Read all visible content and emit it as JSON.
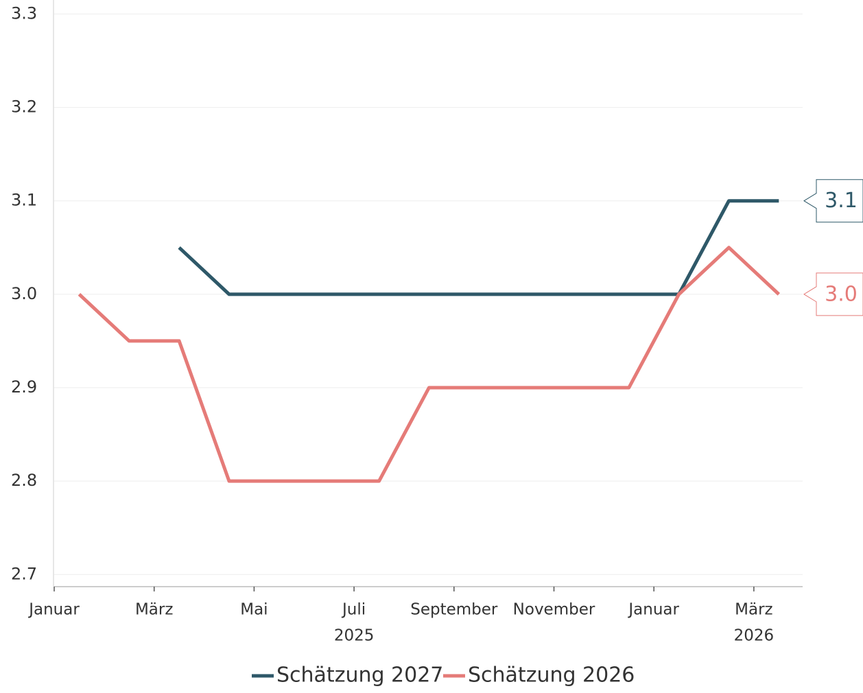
{
  "chart_data": {
    "type": "line",
    "x": [
      "2025-01",
      "2025-02",
      "2025-03",
      "2025-04",
      "2025-05",
      "2025-06",
      "2025-07",
      "2025-08",
      "2025-09",
      "2025-10",
      "2025-11",
      "2025-12",
      "2026-01",
      "2026-02",
      "2026-03"
    ],
    "series": [
      {
        "name": "Schätzung 2027",
        "color": "#2e5868",
        "values": [
          null,
          null,
          3.05,
          3.0,
          3.0,
          3.0,
          3.0,
          3.0,
          3.0,
          3.0,
          3.0,
          3.0,
          3.0,
          3.1,
          3.1
        ],
        "end_label": "3.1"
      },
      {
        "name": "Schätzung 2026",
        "color": "#e57b78",
        "values": [
          3.0,
          2.95,
          2.95,
          2.8,
          2.8,
          2.8,
          2.8,
          2.9,
          2.9,
          2.9,
          2.9,
          2.9,
          3.0,
          3.05,
          3.0
        ],
        "end_label": "3.0"
      }
    ],
    "ylim": [
      2.687,
      3.315
    ],
    "yticks": [
      2.7,
      2.8,
      2.9,
      {
        "value": 3,
        "label": "3.0"
      },
      3.1,
      3.2,
      3.3
    ],
    "xticks": [
      {
        "value": "2025-01",
        "label": "Januar"
      },
      {
        "value": "2025-03",
        "label": "März"
      },
      {
        "value": "2025-05",
        "label": "Mai"
      },
      {
        "value": "2025-07",
        "label": "Juli"
      },
      {
        "value": "2025-09",
        "label": "September"
      },
      {
        "value": "2025-11",
        "label": "November"
      },
      {
        "value": "2026-01",
        "label": "Januar"
      },
      {
        "value": "2026-03",
        "label": "März"
      }
    ],
    "x_year_labels": [
      {
        "value": "2025-07",
        "label": "2025"
      },
      {
        "value": "2026-03",
        "label": "2026"
      }
    ],
    "grid": true,
    "legend": "bottom"
  }
}
